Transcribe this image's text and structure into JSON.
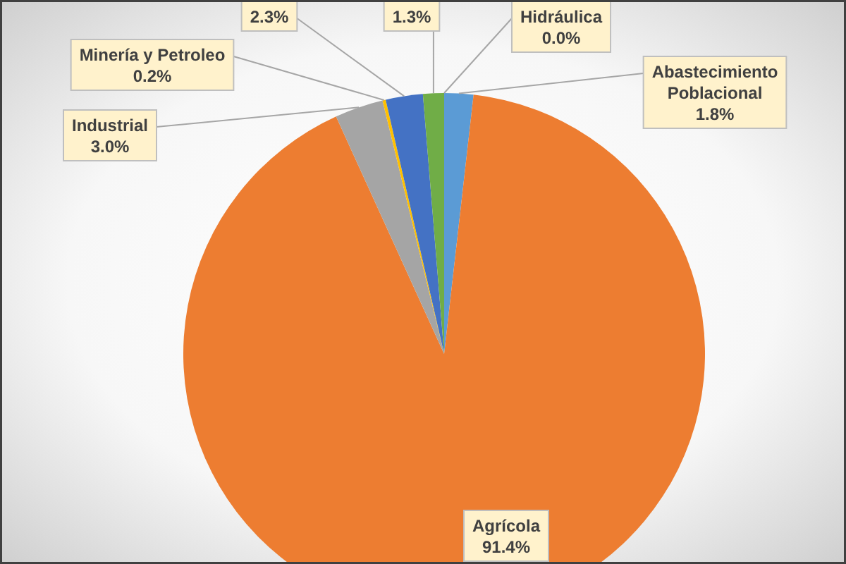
{
  "chart_data": {
    "type": "pie",
    "categories": [
      "Abastecimiento Poblacional",
      "Agrícola",
      "Industrial",
      "Minería y Petroleo",
      null,
      null,
      "Hidráulica"
    ],
    "values": [
      1.8,
      91.4,
      3.0,
      0.2,
      2.3,
      1.3,
      0.0
    ],
    "colors": [
      "#5b9bd5",
      "#ed7d31",
      "#a5a5a5",
      "#ffc000",
      "#4472c4",
      "#70ad47",
      "#264478"
    ],
    "value_labels": [
      "1.8%",
      "91.4%",
      "3.0%",
      "0.2%",
      "2.3%",
      "1.3%",
      "0.0%"
    ]
  }
}
